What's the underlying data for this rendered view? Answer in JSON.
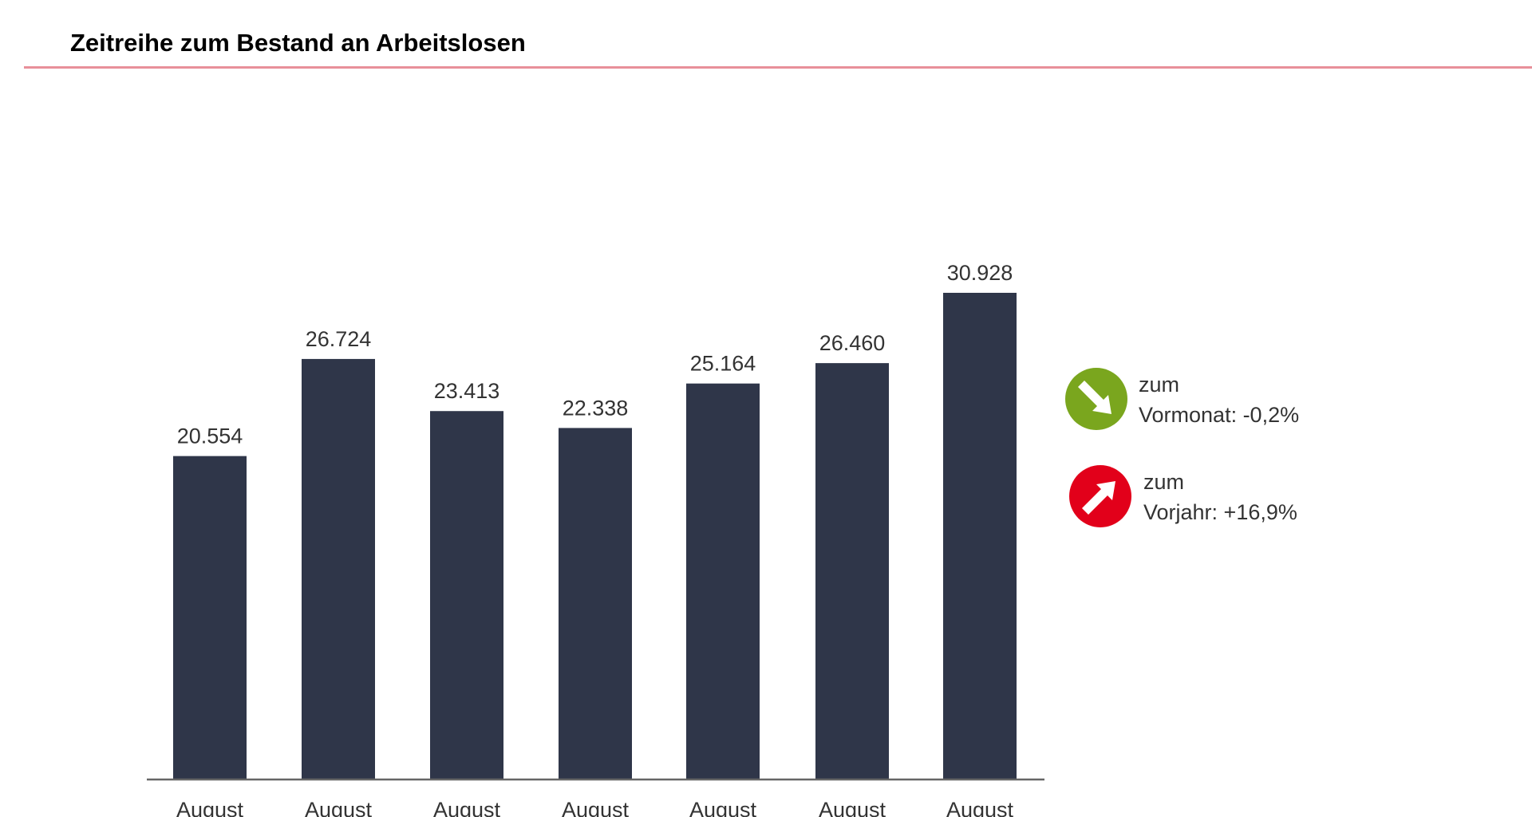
{
  "chart_data": {
    "type": "bar",
    "title": "Zeitreihe zum Bestand an Arbeitslosen",
    "categories": [
      "August",
      "August",
      "August",
      "August",
      "August",
      "August",
      "August"
    ],
    "values": [
      20554,
      26724,
      23413,
      22338,
      25164,
      26460,
      30928
    ],
    "value_labels": [
      "20.554",
      "26.724",
      "23.413",
      "22.338",
      "25.164",
      "26.460",
      "30.928"
    ],
    "ylim": [
      0,
      30928
    ],
    "grid": false,
    "bar_color": "#2f3649"
  },
  "indicators": [
    {
      "line1": "zum",
      "line2": "Vormonat: -0,2%",
      "direction": "down",
      "icon": "arrow-down-right-icon",
      "color": "#7aa61e"
    },
    {
      "line1": "zum",
      "line2": "Vorjahr: +16,9%",
      "direction": "up",
      "icon": "arrow-up-right-icon",
      "color": "#e2001a"
    }
  ],
  "accent_color": "#e8909a"
}
